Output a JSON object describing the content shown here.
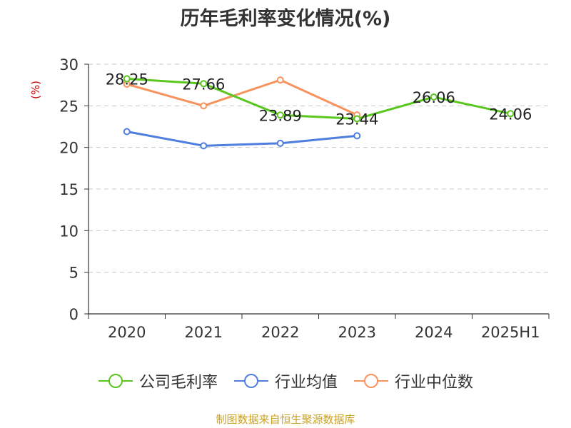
{
  "chart_data": {
    "type": "line",
    "title": "历年毛利率变化情况(%)",
    "ylabel": "(%)",
    "categories": [
      "2020",
      "2021",
      "2022",
      "2023",
      "2024",
      "2025H1"
    ],
    "ylim": [
      0,
      30
    ],
    "yticks": [
      0,
      5,
      10,
      15,
      20,
      25,
      30
    ],
    "grid": true,
    "legend_position": "bottom",
    "series": [
      {
        "name": "公司毛利率",
        "color": "#5ac71e",
        "values": [
          28.25,
          27.66,
          23.89,
          23.44,
          26.06,
          24.06
        ],
        "labels": [
          "28.25",
          "27.66",
          "23.89",
          "23.44",
          "26.06",
          "24.06"
        ]
      },
      {
        "name": "行业均值",
        "color": "#4f7fde",
        "values": [
          21.9,
          20.2,
          20.5,
          21.4,
          null,
          null
        ]
      },
      {
        "name": "行业中位数",
        "color": "#f7935c",
        "values": [
          27.6,
          25.0,
          28.1,
          23.9,
          null,
          null
        ]
      }
    ]
  },
  "footer": {
    "source": "制图数据来自恒生聚源数据库"
  }
}
